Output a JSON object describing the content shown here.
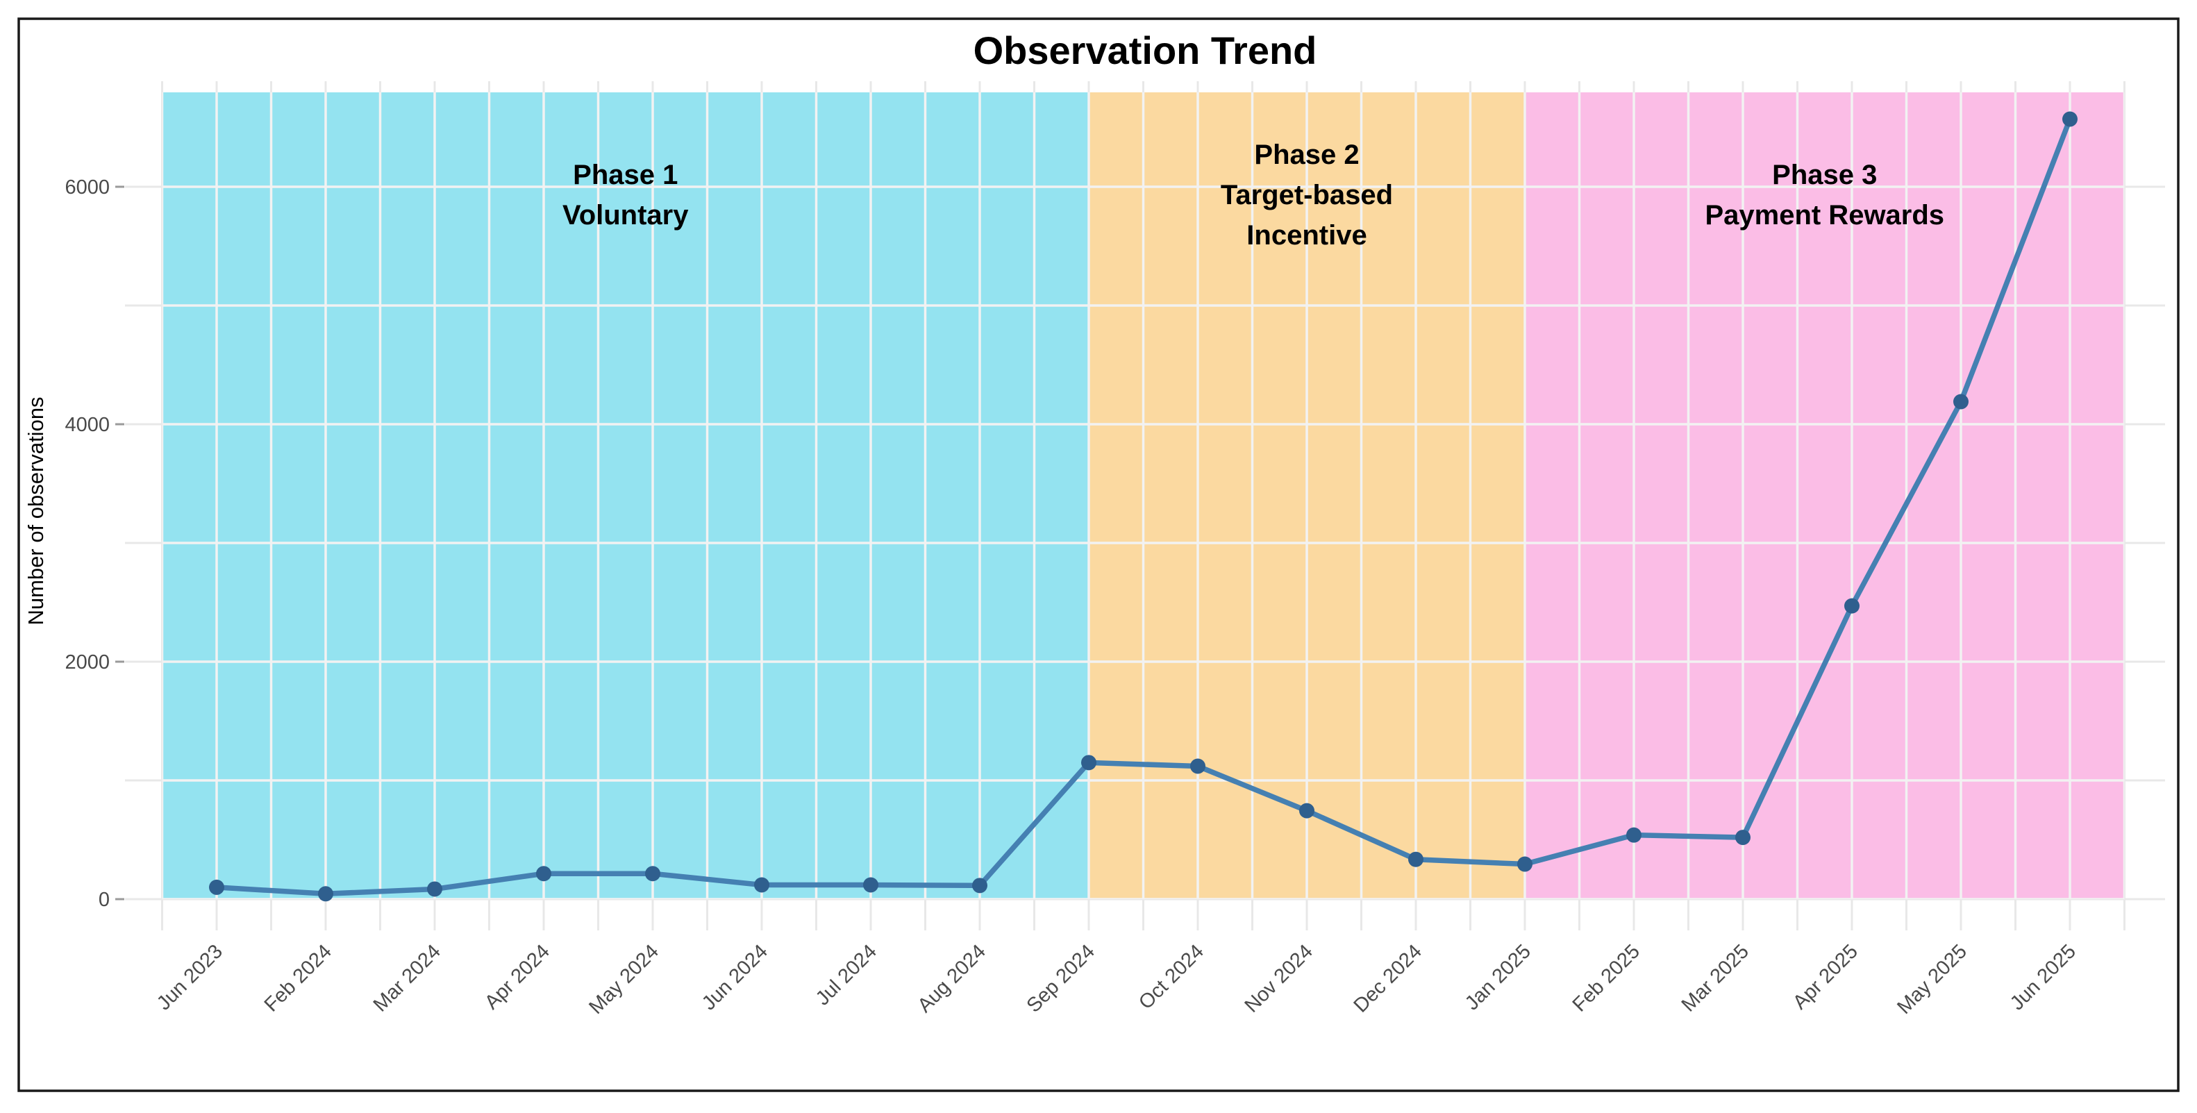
{
  "title": "Observation Trend",
  "y_axis": {
    "label": "Number of observations",
    "tick_values": [
      0,
      2000,
      4000,
      6000
    ],
    "tick_labels": [
      "0",
      "2000",
      "4000",
      "6000"
    ]
  },
  "x_axis": {
    "tick_labels": [
      "Jun 2023",
      "Feb 2024",
      "Mar 2024",
      "Apr 2024",
      "May 2024",
      "Jun 2024",
      "Jul 2024",
      "Aug 2024",
      "Sep 2024",
      "Oct 2024",
      "Nov 2024",
      "Dec 2024",
      "Jan 2025",
      "Feb 2025",
      "Mar 2025",
      "Apr 2025",
      "May 2025",
      "Jun 2025"
    ]
  },
  "phases": [
    {
      "name": "Phase 1",
      "label_lines": [
        "Phase 1",
        "Voluntary"
      ],
      "color": "#94E3F0",
      "start_index": -0.5,
      "end_index": 8
    },
    {
      "name": "Phase 2",
      "label_lines": [
        "Phase 2",
        "Target-based",
        "Incentive"
      ],
      "color": "#FBD9A0",
      "start_index": 8,
      "end_index": 12
    },
    {
      "name": "Phase 3",
      "label_lines": [
        "Phase 3",
        "Payment Rewards"
      ],
      "color": "#FBBDE6",
      "start_index": 12,
      "end_index": 17.5
    }
  ],
  "chart_data": {
    "type": "line",
    "title": "Observation Trend",
    "xlabel": "",
    "ylabel": "Number of observations",
    "categories": [
      "Jun 2023",
      "Feb 2024",
      "Mar 2024",
      "Apr 2024",
      "May 2024",
      "Jun 2024",
      "Jul 2024",
      "Aug 2024",
      "Sep 2024",
      "Oct 2024",
      "Nov 2024",
      "Dec 2024",
      "Jan 2025",
      "Feb 2025",
      "Mar 2025",
      "Apr 2025",
      "May 2025",
      "Jun 2025"
    ],
    "values": [
      100,
      45,
      85,
      215,
      215,
      120,
      120,
      115,
      1150,
      1120,
      745,
      335,
      295,
      540,
      520,
      2470,
      4190,
      6570
    ],
    "ylim": [
      -300,
      6890
    ],
    "grid": true,
    "legend": "none",
    "line_color": "#4580B2",
    "point_color": "#2F5F8E",
    "grid_color_outside": "#e8e8e8",
    "grid_color_over_bands": "#f2f2f2",
    "annotations": [
      "Phase 1 / Voluntary band from chart start to Sep 2024",
      "Phase 2 / Target-based Incentive band from Sep 2024 to Jan 2025",
      "Phase 3 / Payment Rewards band from Jan 2025 to chart end"
    ]
  }
}
